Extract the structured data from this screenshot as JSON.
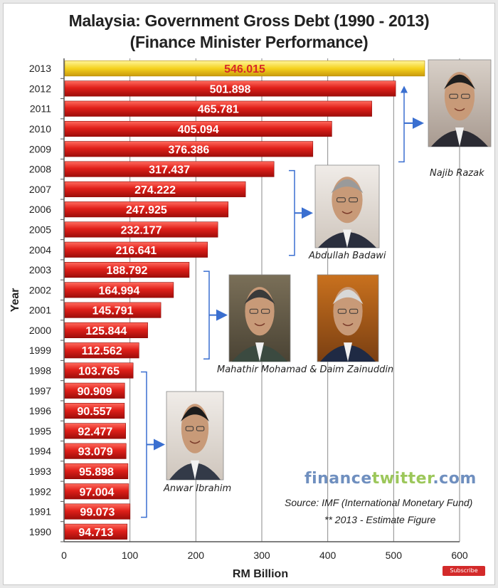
{
  "title_line1": "Malaysia: Government Gross Debt (1990 - 2013)",
  "title_line2": "(Finance Minister Performance)",
  "chart_data": {
    "type": "bar",
    "orientation": "horizontal",
    "categories": [
      "1990",
      "1991",
      "1992",
      "1993",
      "1994",
      "1995",
      "1996",
      "1997",
      "1998",
      "1999",
      "2000",
      "2001",
      "2002",
      "2003",
      "2004",
      "2005",
      "2006",
      "2007",
      "2008",
      "2009",
      "2010",
      "2011",
      "2012",
      "2013"
    ],
    "values": [
      94.713,
      99.073,
      97.004,
      95.898,
      93.079,
      92.477,
      90.557,
      90.909,
      103.765,
      112.562,
      125.844,
      145.791,
      164.994,
      188.792,
      216.641,
      232.177,
      247.925,
      274.222,
      317.437,
      376.386,
      405.094,
      465.781,
      501.898,
      546.015
    ],
    "labels": [
      "94.713",
      "99.073",
      "97.004",
      "95.898",
      "93.079",
      "92.477",
      "90.557",
      "90.909",
      "103.765",
      "112.562",
      "125.844",
      "145.791",
      "164.994",
      "188.792",
      "216.641",
      "232.177",
      "247.925",
      "274.222",
      "317.437",
      "376.386",
      "405.094",
      "465.781",
      "501.898",
      "546.015"
    ],
    "highlight_category": "2013",
    "bar_color": "#e0201a",
    "highlight_color": "#f5d21e",
    "highlight_label_color": "#d62828",
    "xlabel": "RM Billion",
    "ylabel": "Year",
    "xlim": [
      0,
      600
    ],
    "xticks": [
      0,
      100,
      200,
      300,
      400,
      500,
      600
    ],
    "grid": "vertical"
  },
  "ministers": [
    {
      "name": "Najib Razak",
      "years": "2009-2013"
    },
    {
      "name": "Abdullah Badawi",
      "years": "2004-2008"
    },
    {
      "name": "Mahathir Mohamad & Daim Zainuddin",
      "years": "1999-2003"
    },
    {
      "name": "Anwar Ibrahim",
      "years": "1991-1998"
    }
  ],
  "brand": {
    "part1": "finance",
    "part2": "twitter",
    "part3": ".com"
  },
  "source_line1": "Source: IMF (International Monetary Fund)",
  "source_line2": "** 2013 - Estimate Figure",
  "subscribe_label": "Subscribe"
}
